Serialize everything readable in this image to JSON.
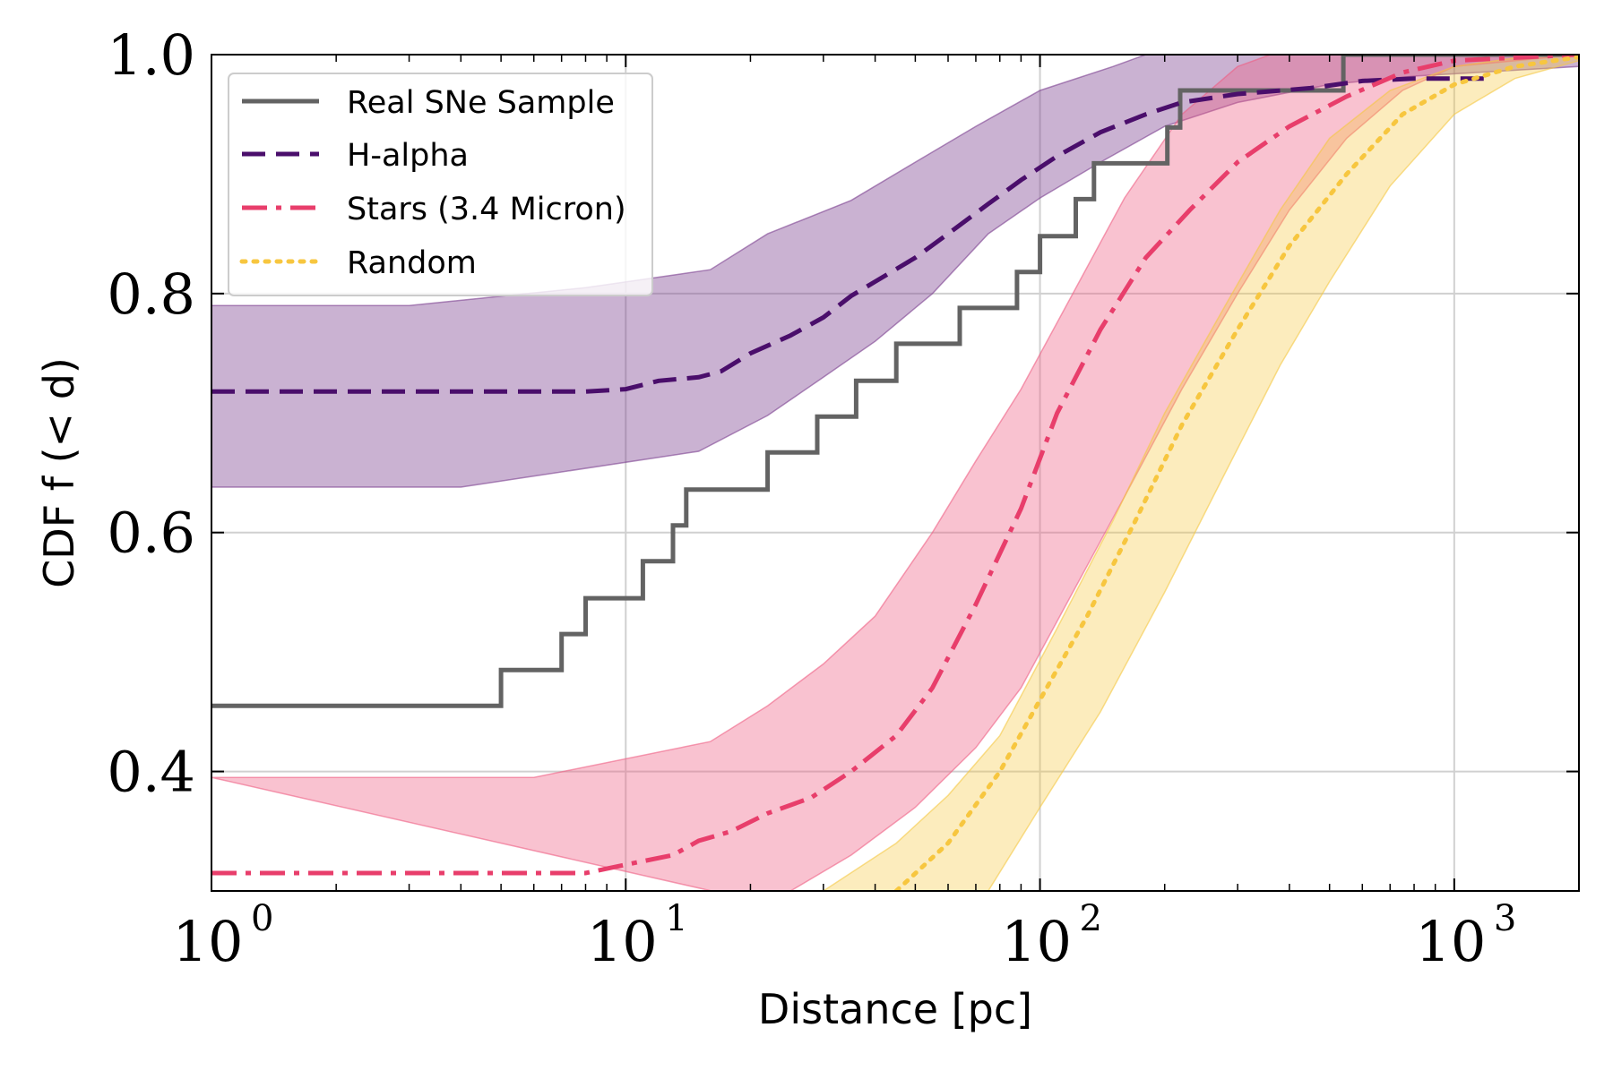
{
  "chart_data": {
    "type": "line",
    "title": "",
    "xlabel": "Distance [pc]",
    "ylabel": "CDF f (< d)",
    "xscale": "log",
    "xlim": [
      1,
      2000
    ],
    "ylim": [
      0.3,
      1.0
    ],
    "grid": true,
    "legend_position": "upper-left",
    "x_ticks": [
      {
        "value": 1,
        "label": "10",
        "exp": "0"
      },
      {
        "value": 10,
        "label": "10",
        "exp": "1"
      },
      {
        "value": 100,
        "label": "10",
        "exp": "2"
      },
      {
        "value": 1000,
        "label": "10",
        "exp": "3"
      }
    ],
    "y_ticks": [
      {
        "value": 0.4,
        "label": "0.4"
      },
      {
        "value": 0.6,
        "label": "0.6"
      },
      {
        "value": 0.8,
        "label": "0.8"
      },
      {
        "value": 1.0,
        "label": "1.0"
      }
    ],
    "bands": [
      {
        "name": "H-alpha",
        "color": "#7b3f8f",
        "opacity": 0.4,
        "upper": [
          [
            1,
            0.79
          ],
          [
            3,
            0.79
          ],
          [
            8,
            0.805
          ],
          [
            16,
            0.82
          ],
          [
            22,
            0.85
          ],
          [
            35,
            0.878
          ],
          [
            50,
            0.91
          ],
          [
            70,
            0.94
          ],
          [
            100,
            0.97
          ],
          [
            150,
            0.99
          ],
          [
            180,
            1.0
          ],
          [
            2000,
            1.0
          ]
        ],
        "lower": [
          [
            1,
            0.638
          ],
          [
            4,
            0.638
          ],
          [
            15,
            0.668
          ],
          [
            22,
            0.698
          ],
          [
            30,
            0.73
          ],
          [
            40,
            0.76
          ],
          [
            55,
            0.8
          ],
          [
            75,
            0.85
          ],
          [
            100,
            0.88
          ],
          [
            140,
            0.91
          ],
          [
            200,
            0.94
          ],
          [
            300,
            0.96
          ],
          [
            500,
            0.975
          ],
          [
            800,
            0.982
          ],
          [
            2000,
            0.99
          ]
        ]
      },
      {
        "name": "Stars (3.4 Micron)",
        "color": "#ee5f83",
        "opacity": 0.38,
        "upper": [
          [
            1,
            0.395
          ],
          [
            6,
            0.395
          ],
          [
            16,
            0.425
          ],
          [
            22,
            0.455
          ],
          [
            30,
            0.49
          ],
          [
            40,
            0.53
          ],
          [
            55,
            0.6
          ],
          [
            70,
            0.66
          ],
          [
            90,
            0.72
          ],
          [
            120,
            0.8
          ],
          [
            160,
            0.88
          ],
          [
            220,
            0.95
          ],
          [
            300,
            0.99
          ],
          [
            360,
            1.0
          ],
          [
            2000,
            1.0
          ]
        ],
        "lower": [
          [
            25,
            0.3
          ],
          [
            35,
            0.33
          ],
          [
            50,
            0.37
          ],
          [
            70,
            0.42
          ],
          [
            90,
            0.47
          ],
          [
            120,
            0.55
          ],
          [
            160,
            0.63
          ],
          [
            220,
            0.72
          ],
          [
            300,
            0.8
          ],
          [
            400,
            0.87
          ],
          [
            550,
            0.93
          ],
          [
            750,
            0.97
          ],
          [
            1000,
            0.99
          ],
          [
            2000,
            1.0
          ]
        ]
      },
      {
        "name": "Random",
        "color": "#f5c842",
        "opacity": 0.35,
        "upper": [
          [
            30,
            0.3
          ],
          [
            45,
            0.34
          ],
          [
            60,
            0.38
          ],
          [
            80,
            0.43
          ],
          [
            110,
            0.52
          ],
          [
            150,
            0.61
          ],
          [
            200,
            0.7
          ],
          [
            280,
            0.79
          ],
          [
            380,
            0.87
          ],
          [
            500,
            0.93
          ],
          [
            700,
            0.97
          ],
          [
            1000,
            0.99
          ],
          [
            1600,
            1.0
          ],
          [
            2000,
            1.0
          ]
        ],
        "lower": [
          [
            75,
            0.3
          ],
          [
            100,
            0.37
          ],
          [
            140,
            0.45
          ],
          [
            200,
            0.55
          ],
          [
            280,
            0.65
          ],
          [
            380,
            0.74
          ],
          [
            500,
            0.81
          ],
          [
            700,
            0.89
          ],
          [
            1000,
            0.95
          ],
          [
            1400,
            0.98
          ],
          [
            2000,
            0.995
          ]
        ]
      }
    ],
    "series": [
      {
        "name": "Real SNe Sample",
        "color": "#636363",
        "style": "solid",
        "step": true,
        "points": [
          [
            1,
            0.455
          ],
          [
            5,
            0.455
          ],
          [
            5,
            0.485
          ],
          [
            7,
            0.485
          ],
          [
            7,
            0.515
          ],
          [
            8,
            0.515
          ],
          [
            8,
            0.545
          ],
          [
            11,
            0.545
          ],
          [
            11,
            0.576
          ],
          [
            13,
            0.576
          ],
          [
            13,
            0.606
          ],
          [
            14,
            0.606
          ],
          [
            14,
            0.636
          ],
          [
            22,
            0.636
          ],
          [
            22,
            0.667
          ],
          [
            29,
            0.667
          ],
          [
            29,
            0.697
          ],
          [
            36,
            0.697
          ],
          [
            36,
            0.727
          ],
          [
            45,
            0.727
          ],
          [
            45,
            0.758
          ],
          [
            64,
            0.758
          ],
          [
            64,
            0.788
          ],
          [
            88,
            0.788
          ],
          [
            88,
            0.818
          ],
          [
            100,
            0.818
          ],
          [
            100,
            0.848
          ],
          [
            122,
            0.848
          ],
          [
            122,
            0.879
          ],
          [
            135,
            0.879
          ],
          [
            135,
            0.909
          ],
          [
            203,
            0.909
          ],
          [
            203,
            0.939
          ],
          [
            218,
            0.939
          ],
          [
            218,
            0.97
          ],
          [
            540,
            0.97
          ],
          [
            540,
            1.0
          ],
          [
            2000,
            1.0
          ]
        ]
      },
      {
        "name": "H-alpha",
        "color": "#4a0e6b",
        "style": "dashed",
        "step": false,
        "points": [
          [
            1,
            0.718
          ],
          [
            8,
            0.718
          ],
          [
            10,
            0.72
          ],
          [
            12,
            0.727
          ],
          [
            15,
            0.73
          ],
          [
            17,
            0.735
          ],
          [
            20,
            0.75
          ],
          [
            25,
            0.765
          ],
          [
            30,
            0.78
          ],
          [
            35,
            0.798
          ],
          [
            40,
            0.81
          ],
          [
            50,
            0.83
          ],
          [
            60,
            0.85
          ],
          [
            75,
            0.875
          ],
          [
            90,
            0.895
          ],
          [
            110,
            0.915
          ],
          [
            140,
            0.935
          ],
          [
            180,
            0.95
          ],
          [
            220,
            0.96
          ],
          [
            300,
            0.967
          ],
          [
            450,
            0.972
          ],
          [
            600,
            0.978
          ],
          [
            800,
            0.98
          ],
          [
            1200,
            0.98
          ]
        ]
      },
      {
        "name": "Stars (3.4 Micron)",
        "color": "#e83e6b",
        "style": "dashdot",
        "step": false,
        "points": [
          [
            1,
            0.315
          ],
          [
            8,
            0.315
          ],
          [
            10,
            0.322
          ],
          [
            13,
            0.33
          ],
          [
            15,
            0.342
          ],
          [
            18,
            0.35
          ],
          [
            22,
            0.365
          ],
          [
            28,
            0.378
          ],
          [
            35,
            0.4
          ],
          [
            45,
            0.43
          ],
          [
            55,
            0.47
          ],
          [
            70,
            0.54
          ],
          [
            90,
            0.62
          ],
          [
            110,
            0.7
          ],
          [
            140,
            0.77
          ],
          [
            180,
            0.83
          ],
          [
            230,
            0.87
          ],
          [
            300,
            0.91
          ],
          [
            400,
            0.94
          ],
          [
            550,
            0.965
          ],
          [
            750,
            0.985
          ],
          [
            1000,
            0.995
          ],
          [
            2000,
            1.0
          ]
        ]
      },
      {
        "name": "Random",
        "color": "#f7c63f",
        "style": "dotted",
        "step": false,
        "points": [
          [
            45,
            0.3
          ],
          [
            60,
            0.34
          ],
          [
            80,
            0.4
          ],
          [
            100,
            0.46
          ],
          [
            130,
            0.53
          ],
          [
            170,
            0.61
          ],
          [
            220,
            0.69
          ],
          [
            300,
            0.77
          ],
          [
            400,
            0.84
          ],
          [
            550,
            0.9
          ],
          [
            750,
            0.95
          ],
          [
            1000,
            0.975
          ],
          [
            1400,
            0.99
          ],
          [
            2000,
            0.998
          ]
        ]
      }
    ]
  }
}
